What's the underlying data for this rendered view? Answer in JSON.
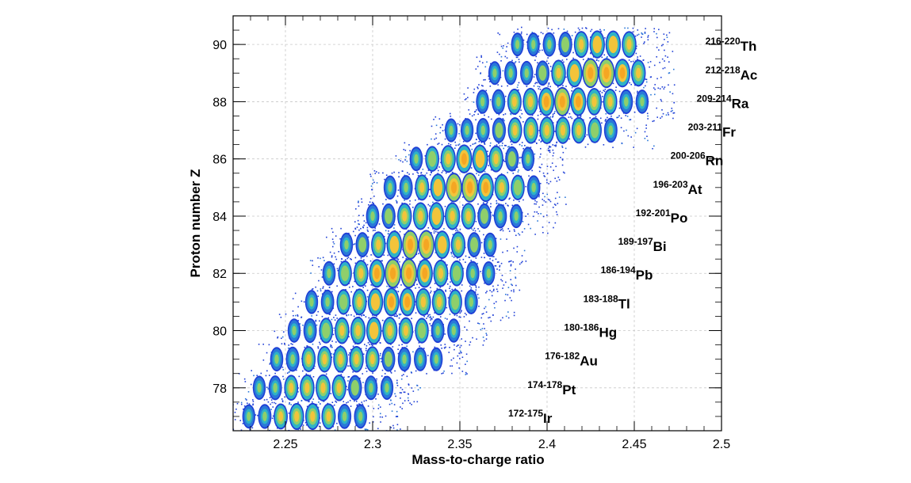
{
  "chart_data": {
    "type": "heatmap",
    "xlabel": "Mass-to-charge ratio",
    "ylabel": "Proton number Z",
    "xlim": [
      2.22,
      2.5
    ],
    "ylim": [
      76.5,
      91
    ],
    "x_ticks": [
      "2.25",
      "2.3",
      "2.35",
      "2.4",
      "2.45",
      "2.5"
    ],
    "y_ticks": [
      "78",
      "80",
      "82",
      "84",
      "86",
      "88",
      "90"
    ],
    "grid": true,
    "colormap": [
      "#1f3fd6",
      "#2a78d8",
      "#2fb3c6",
      "#8fcf6b",
      "#f2c43b",
      "#f5a623"
    ],
    "annotations": [
      {
        "range": "172-175",
        "element": "Ir",
        "z": 77,
        "x": 2.405
      },
      {
        "range": "174-178",
        "element": "Pt",
        "z": 78,
        "x": 2.416
      },
      {
        "range": "176-182",
        "element": "Au",
        "z": 79,
        "x": 2.426
      },
      {
        "range": "180-186",
        "element": "Hg",
        "z": 80,
        "x": 2.437
      },
      {
        "range": "183-188",
        "element": "Tl",
        "z": 81,
        "x": 2.448
      },
      {
        "range": "186-194",
        "element": "Pb",
        "z": 82,
        "x": 2.458
      },
      {
        "range": "189-197",
        "element": "Bi",
        "z": 83,
        "x": 2.468
      },
      {
        "range": "192-201",
        "element": "Po",
        "z": 84,
        "x": 2.478
      },
      {
        "range": "196-203",
        "element": "At",
        "z": 85,
        "x": 2.488
      },
      {
        "range": "200-206",
        "element": "Rn",
        "z": 86,
        "x": 2.498
      },
      {
        "range": "203-211",
        "element": "Fr",
        "z": 87,
        "x": 2.508
      },
      {
        "range": "209-214",
        "element": "Ra",
        "z": 88,
        "x": 2.513
      },
      {
        "range": "212-218",
        "element": "Ac",
        "z": 89,
        "x": 2.518
      },
      {
        "range": "216-220",
        "element": "Th",
        "z": 90,
        "x": 2.518
      }
    ],
    "rows": [
      {
        "z": 77,
        "x_min": 2.229,
        "x_max": 2.3,
        "peak_x": 2.262,
        "peak": 0.55
      },
      {
        "z": 78,
        "x_min": 2.235,
        "x_max": 2.31,
        "peak_x": 2.27,
        "peak": 0.55
      },
      {
        "z": 79,
        "x_min": 2.245,
        "x_max": 2.34,
        "peak_x": 2.282,
        "peak": 0.5
      },
      {
        "z": 80,
        "x_min": 2.255,
        "x_max": 2.35,
        "peak_x": 2.3,
        "peak": 0.7
      },
      {
        "z": 81,
        "x_min": 2.265,
        "x_max": 2.365,
        "peak_x": 2.315,
        "peak": 0.8
      },
      {
        "z": 82,
        "x_min": 2.275,
        "x_max": 2.368,
        "peak_x": 2.317,
        "peak": 1.0
      },
      {
        "z": 83,
        "x_min": 2.285,
        "x_max": 2.37,
        "peak_x": 2.326,
        "peak": 0.95
      },
      {
        "z": 84,
        "x_min": 2.3,
        "x_max": 2.388,
        "peak_x": 2.336,
        "peak": 0.7
      },
      {
        "z": 85,
        "x_min": 2.31,
        "x_max": 2.393,
        "peak_x": 2.354,
        "peak": 1.0
      },
      {
        "z": 86,
        "x_min": 2.325,
        "x_max": 2.392,
        "peak_x": 2.355,
        "peak": 0.85
      },
      {
        "z": 87,
        "x_min": 2.345,
        "x_max": 2.445,
        "peak_x": 2.402,
        "peak": 0.6
      },
      {
        "z": 88,
        "x_min": 2.363,
        "x_max": 2.455,
        "peak_x": 2.408,
        "peak": 0.9
      },
      {
        "z": 89,
        "x_min": 2.37,
        "x_max": 2.455,
        "peak_x": 2.43,
        "peak": 1.0
      },
      {
        "z": 90,
        "x_min": 2.383,
        "x_max": 2.455,
        "peak_x": 2.433,
        "peak": 0.7
      }
    ]
  }
}
